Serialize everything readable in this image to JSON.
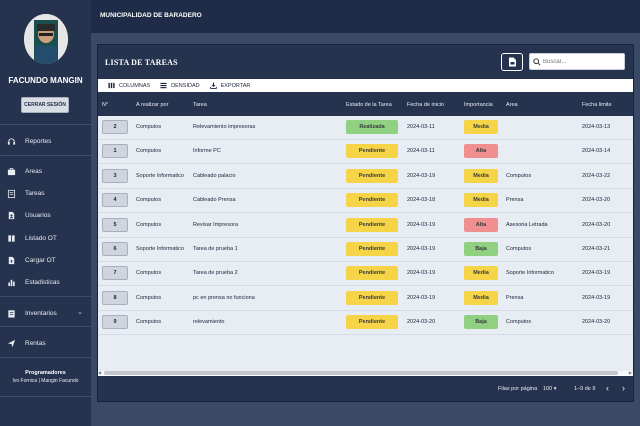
{
  "sidebar": {
    "user_name": "FACUNDO MANGIN",
    "logout_label": "CERRAR SESIÓN",
    "items": [
      {
        "label": "Reportes",
        "icon": "headset-icon"
      },
      {
        "label": "Areas",
        "icon": "briefcase-icon"
      },
      {
        "label": "Tareas",
        "icon": "clipboard-icon"
      },
      {
        "label": "Usuarios",
        "icon": "user-file-icon"
      },
      {
        "label": "Listado OT",
        "icon": "book-icon"
      },
      {
        "label": "Cargar OT",
        "icon": "upload-file-icon"
      },
      {
        "label": "Estadisticas",
        "icon": "bar-chart-icon"
      },
      {
        "label": "Inventarios",
        "icon": "inventory-icon"
      },
      {
        "label": "Rentas",
        "icon": "send-icon"
      }
    ],
    "credits_title": "Programadores",
    "credits_names": "Ivo Fornica | Mangin Facundo"
  },
  "topbar": {
    "title": "MUNICIPALIDAD DE BARADERO"
  },
  "card": {
    "title": "LISTA DE TAREAS",
    "search_placeholder": "Buscar..."
  },
  "toolbar": {
    "columns_label": "COLUMNAS",
    "density_label": "DENSIDAD",
    "export_label": "EXPORTAR"
  },
  "table": {
    "headers": {
      "num": "N°",
      "assignee": "A realizar por",
      "task": "Tarea",
      "status": "Estado de la Tarea",
      "start": "Fecha de inicio",
      "importance": "Importancia",
      "area": "Area",
      "deadline": "Fecha limite"
    },
    "rows": [
      {
        "num": "2",
        "assignee": "Computos",
        "task": "Relevamiento impresoras",
        "status": "Realizada",
        "start": "2024-03-11",
        "importance": "Media",
        "area": "",
        "deadline": "2024-03-13"
      },
      {
        "num": "1",
        "assignee": "Computos",
        "task": "Informe PC",
        "status": "Pendiente",
        "start": "2024-03-11",
        "importance": "Alta",
        "area": "",
        "deadline": "2024-03-14"
      },
      {
        "num": "3",
        "assignee": "Soporte Informatico",
        "task": "Cableado palacio",
        "status": "Pendiente",
        "start": "2024-03-19",
        "importance": "Media",
        "area": "Computos",
        "deadline": "2024-03-22"
      },
      {
        "num": "4",
        "assignee": "Computos",
        "task": "Cableado Prensa",
        "status": "Pendiente",
        "start": "2024-03-18",
        "importance": "Media",
        "area": "Prensa",
        "deadline": "2024-03-20"
      },
      {
        "num": "5",
        "assignee": "Computos",
        "task": "Revisar Impresora",
        "status": "Pendiente",
        "start": "2024-03-19",
        "importance": "Alta",
        "area": "Asesoria Letrada",
        "deadline": "2024-03-20"
      },
      {
        "num": "6",
        "assignee": "Soporte Informatico",
        "task": "Tarea de prueba 1",
        "status": "Pendiente",
        "start": "2024-03-19",
        "importance": "Baja",
        "area": "Computos",
        "deadline": "2024-03-21"
      },
      {
        "num": "7",
        "assignee": "Computos",
        "task": "Tarea de prueba 2",
        "status": "Pendiente",
        "start": "2024-03-19",
        "importance": "Media",
        "area": "Soporte Informatico",
        "deadline": "2024-03-19"
      },
      {
        "num": "8",
        "assignee": "Computos",
        "task": "pc en prensa no funciona",
        "status": "Pendiente",
        "start": "2024-03-19",
        "importance": "Media",
        "area": "Prensa",
        "deadline": "2024-03-19"
      },
      {
        "num": "9",
        "assignee": "Computos",
        "task": "relevamiento",
        "status": "Pendiente",
        "start": "2024-03-20",
        "importance": "Baja",
        "area": "Computos",
        "deadline": "2024-03-20"
      }
    ]
  },
  "colors": {
    "Realizada": "#8fd081",
    "Pendiente": "#f5d547",
    "Media": "#f5d547",
    "Alta": "#ef8f8f",
    "Baja": "#8fd081"
  },
  "footer": {
    "rows_label": "Filas por página",
    "rows_value": "100",
    "range": "1–9 de 9"
  }
}
